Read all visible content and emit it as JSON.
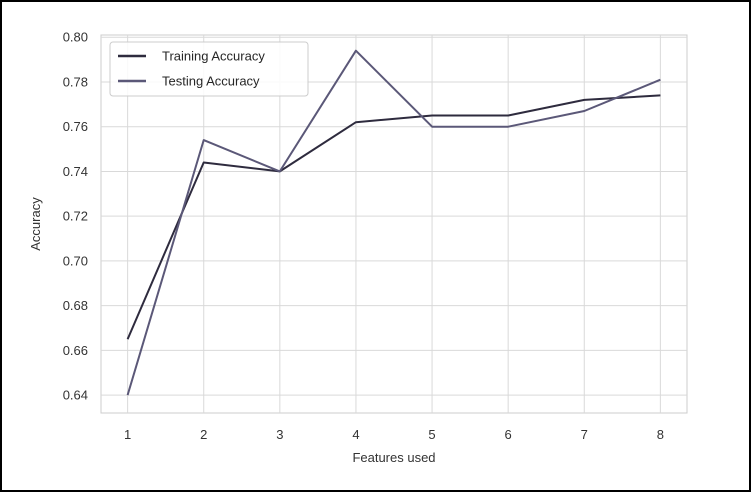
{
  "chart_data": {
    "type": "line",
    "title": "",
    "xlabel": "Features used",
    "ylabel": "Accuracy",
    "x": [
      1,
      2,
      3,
      4,
      5,
      6,
      7,
      8
    ],
    "xticks": [
      "1",
      "2",
      "3",
      "4",
      "5",
      "6",
      "7",
      "8"
    ],
    "yticks": [
      "0.64",
      "0.66",
      "0.68",
      "0.70",
      "0.72",
      "0.74",
      "0.76",
      "0.78",
      "0.80"
    ],
    "xlim": [
      0.65,
      8.35
    ],
    "ylim": [
      0.632,
      0.801
    ],
    "grid": true,
    "legend_position": "top-left",
    "series": [
      {
        "name": "Training Accuracy",
        "color": "#2e2b3e",
        "values": [
          0.665,
          0.744,
          0.74,
          0.762,
          0.765,
          0.765,
          0.772,
          0.774
        ]
      },
      {
        "name": "Testing Accuracy",
        "color": "#5b5878",
        "values": [
          0.64,
          0.754,
          0.74,
          0.794,
          0.76,
          0.76,
          0.767,
          0.781
        ]
      }
    ]
  }
}
